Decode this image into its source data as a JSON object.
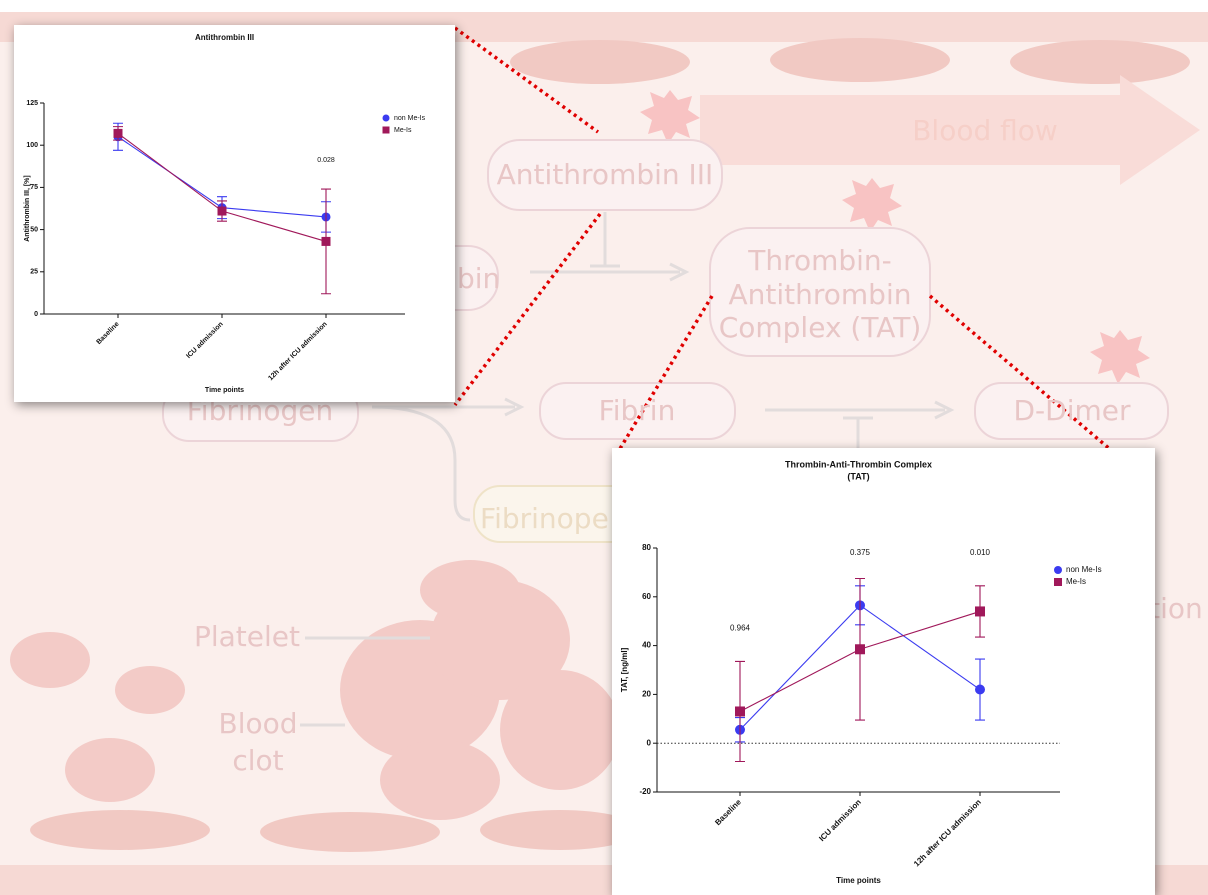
{
  "diagram": {
    "antithrombin": "Antithrombin III",
    "tat": [
      "Thrombin-",
      "Antithrombin",
      "Complex (TAT)"
    ],
    "thrombin_fragment": "bin",
    "fibrinogen": "Fibrinogen",
    "fibrin": "Fibrin",
    "d_dimer": "D-Dimer",
    "fibrinopeptide_fragment": "Fibrinope",
    "blood_flow": "Blood flow",
    "platelet": "Platelet",
    "blood_clot": [
      "Blood",
      "clot"
    ],
    "activation_fragment": "ation"
  },
  "chart_data": [
    {
      "type": "line",
      "title": "Antithrombin III",
      "xlabel": "Time points",
      "ylabel": "Antithrombin III, [%]",
      "categories": [
        "Baseline",
        "ICU admission",
        "12h after ICU admission"
      ],
      "series": [
        {
          "name": "non Me-Is",
          "color": "#3b3bf0",
          "marker": "circle",
          "values": [
            105,
            63,
            57.5
          ],
          "errors": [
            8,
            6.5,
            9
          ]
        },
        {
          "name": "Me-Is",
          "color": "#a0185a",
          "marker": "square",
          "values": [
            107,
            61,
            43
          ],
          "errors": [
            4,
            6,
            31
          ]
        }
      ],
      "ylim": [
        0,
        125
      ],
      "yticks": [
        0,
        25,
        50,
        75,
        100,
        125
      ],
      "annotations": [
        {
          "text": "0.028",
          "x": "12h after ICU admission",
          "y": 91
        }
      ],
      "legend": "upper right"
    },
    {
      "type": "line",
      "title": [
        "Thrombin-Anti-Thrombin Complex",
        "(TAT)"
      ],
      "xlabel": "Time points",
      "ylabel": "TAT, [ng/ml]",
      "categories": [
        "Baseline",
        "ICU admission",
        "12h after ICU admission"
      ],
      "series": [
        {
          "name": "non Me-Is",
          "color": "#3b3bf0",
          "marker": "circle",
          "values": [
            5.5,
            56.5,
            22
          ],
          "errors": [
            5,
            8,
            12.5
          ]
        },
        {
          "name": "Me-Is",
          "color": "#a0185a",
          "marker": "square",
          "values": [
            13,
            38.5,
            54
          ],
          "errors": [
            20.5,
            29,
            10.5
          ]
        }
      ],
      "ylim": [
        -20,
        80
      ],
      "yticks": [
        -20,
        0,
        20,
        40,
        60,
        80
      ],
      "zero_line": true,
      "annotations": [
        {
          "text": "0.964",
          "x": "Baseline",
          "y": 47
        },
        {
          "text": "0.375",
          "x": "ICU admission",
          "y": 78
        },
        {
          "text": "0.010",
          "x": "12h after ICU admission",
          "y": 78
        }
      ],
      "legend": "upper right"
    }
  ]
}
